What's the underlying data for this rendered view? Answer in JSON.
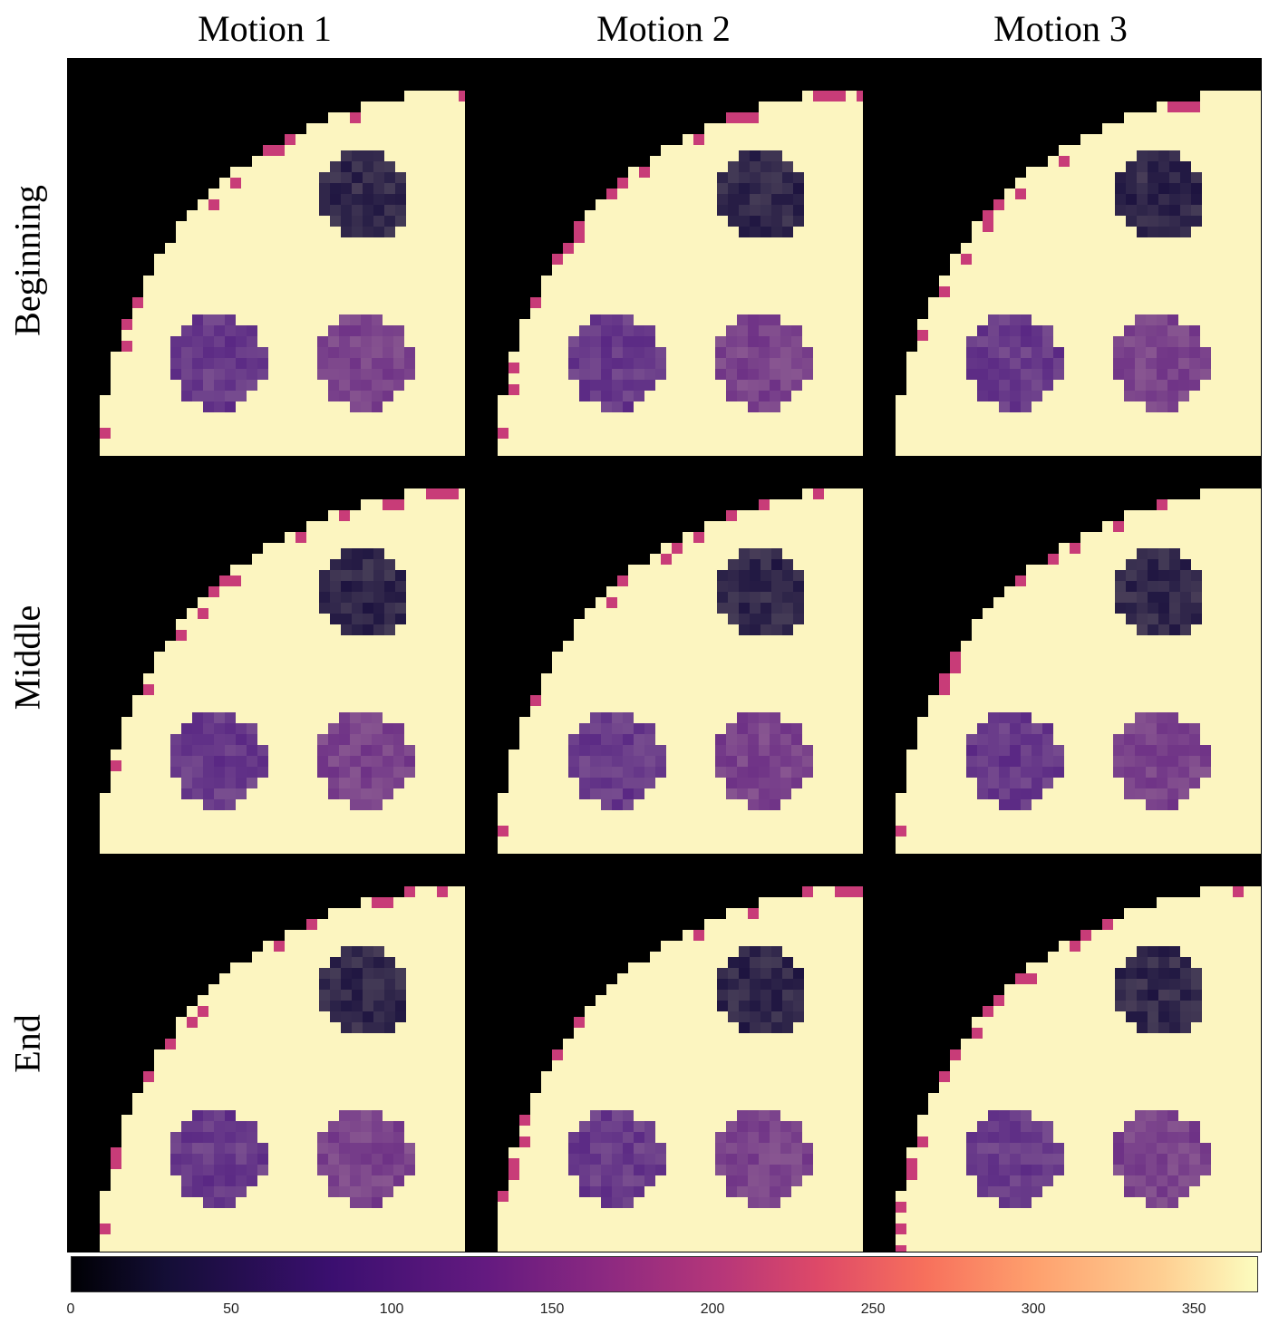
{
  "columns": [
    "Motion 1",
    "Motion 2",
    "Motion 3"
  ],
  "rows": [
    "Beginning",
    "Middle",
    "End"
  ],
  "colorbar": {
    "ticks": [
      "0",
      "50",
      "100",
      "150",
      "200",
      "250",
      "300",
      "350"
    ],
    "range": [
      0,
      370
    ]
  },
  "colors": {
    "background": "#000000",
    "phantom": "#fcf5c0",
    "rim": "#c83c78",
    "insert_dark": "#1e1440",
    "insert_mid": "#5a2884",
    "insert_light": "#6e3286"
  }
}
